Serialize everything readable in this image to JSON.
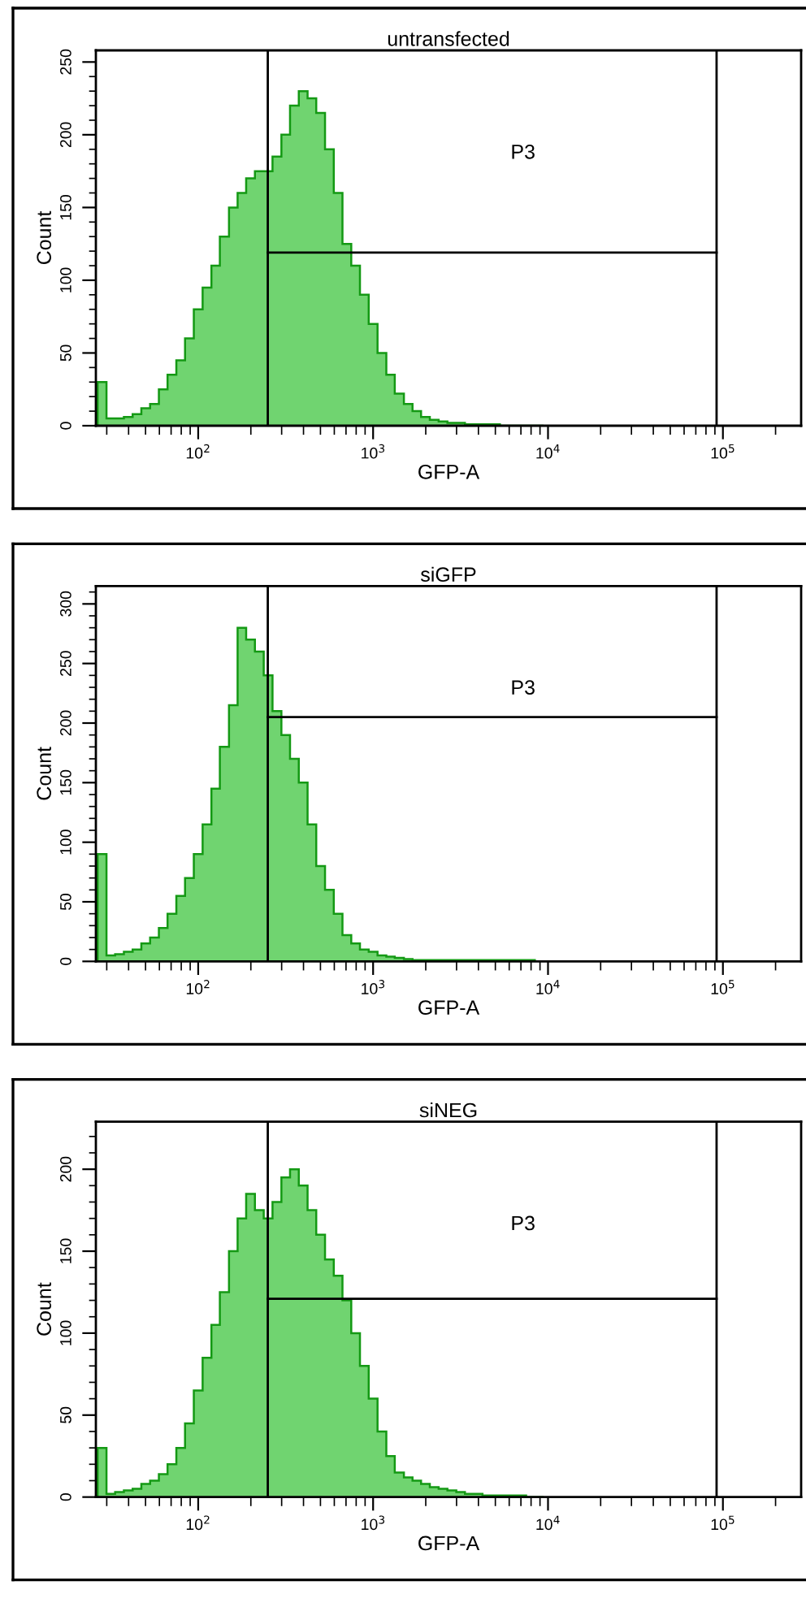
{
  "chart_data": [
    {
      "type": "histogram",
      "title": "untransfected",
      "xlabel": "GFP-A",
      "ylabel": "Count",
      "log": "x",
      "grid": false,
      "color": "#70d470",
      "bins": [
        26.6,
        29.9,
        33.5,
        37.6,
        42.2,
        47.3,
        53.1,
        59.6,
        66.8,
        75.0,
        84.1,
        94.4,
        106,
        119,
        133,
        150,
        168,
        188,
        211,
        237,
        266,
        299,
        335,
        376,
        422,
        473,
        531,
        596,
        668,
        750,
        841,
        944,
        1060,
        1190,
        1330,
        1500,
        1680,
        1880,
        2110,
        2370,
        2660,
        2990,
        3350,
        3760,
        4220,
        4730,
        5310,
        5960,
        6680,
        7500,
        8410,
        9440
      ],
      "values": [
        30,
        5,
        5,
        6,
        8,
        12,
        15,
        25,
        35,
        45,
        60,
        80,
        95,
        110,
        130,
        150,
        160,
        170,
        175,
        175,
        185,
        200,
        220,
        230,
        225,
        215,
        190,
        160,
        125,
        110,
        90,
        70,
        50,
        35,
        22,
        15,
        10,
        6,
        4,
        3,
        2,
        2,
        1,
        1,
        1,
        1,
        0,
        0,
        0,
        0,
        0
      ],
      "ref_lines": [
        {
          "axis": "x",
          "value": 250,
          "color": "#000000"
        },
        {
          "axis": "x",
          "value": 92000,
          "color": "#000000"
        },
        {
          "axis": "y",
          "value": 119,
          "label": "P3",
          "color": "#000000"
        }
      ],
      "xlim": [
        26,
        280000
      ],
      "ylim": [
        0,
        258
      ],
      "xticks": [
        {
          "value": 100,
          "label": "10$^{2}$"
        },
        {
          "value": 1000,
          "label": "10$^{3}$"
        },
        {
          "value": 10000,
          "label": "10$^{4}$"
        },
        {
          "value": 100000,
          "label": "10$^{5}$"
        }
      ],
      "yticks": [
        0,
        50,
        100,
        150,
        200,
        250
      ]
    },
    {
      "type": "histogram",
      "title": "siGFP",
      "xlabel": "GFP-A",
      "ylabel": "Count",
      "log": "x",
      "grid": false,
      "color": "#70d470",
      "bins": [
        26.6,
        29.9,
        33.5,
        37.6,
        42.2,
        47.3,
        53.1,
        59.6,
        66.8,
        75.0,
        84.1,
        94.4,
        106,
        119,
        133,
        150,
        168,
        188,
        211,
        237,
        266,
        299,
        335,
        376,
        422,
        473,
        531,
        596,
        668,
        750,
        841,
        944,
        1060,
        1190,
        1330,
        1500,
        1680,
        1880,
        2110,
        2370,
        2660,
        2990,
        3350,
        3760,
        4220,
        4730,
        5310,
        5960,
        6680,
        7500,
        8410,
        9440
      ],
      "values": [
        90,
        5,
        6,
        8,
        10,
        15,
        20,
        28,
        40,
        55,
        70,
        90,
        115,
        145,
        180,
        215,
        280,
        270,
        260,
        240,
        210,
        190,
        170,
        150,
        115,
        80,
        60,
        40,
        22,
        15,
        10,
        8,
        5,
        4,
        3,
        2,
        1,
        1,
        1,
        1,
        1,
        1,
        1,
        1,
        1,
        1,
        1,
        1,
        1,
        1,
        0
      ],
      "ref_lines": [
        {
          "axis": "x",
          "value": 250,
          "color": "#000000"
        },
        {
          "axis": "x",
          "value": 92000,
          "color": "#000000"
        },
        {
          "axis": "y",
          "value": 205,
          "label": "P3",
          "color": "#000000"
        }
      ],
      "xlim": [
        26,
        280000
      ],
      "ylim": [
        0,
        315
      ],
      "xticks": [
        {
          "value": 100,
          "label": "10$^{2}$"
        },
        {
          "value": 1000,
          "label": "10$^{3}$"
        },
        {
          "value": 10000,
          "label": "10$^{4}$"
        },
        {
          "value": 100000,
          "label": "10$^{5}$"
        }
      ],
      "yticks": [
        0,
        50,
        100,
        150,
        200,
        250,
        300
      ]
    },
    {
      "type": "histogram",
      "title": "siNEG",
      "xlabel": "GFP-A",
      "ylabel": "Count",
      "log": "x",
      "grid": false,
      "color": "#70d470",
      "bins": [
        26.6,
        29.9,
        33.5,
        37.6,
        42.2,
        47.3,
        53.1,
        59.6,
        66.8,
        75.0,
        84.1,
        94.4,
        106,
        119,
        133,
        150,
        168,
        188,
        211,
        237,
        266,
        299,
        335,
        376,
        422,
        473,
        531,
        596,
        668,
        750,
        841,
        944,
        1060,
        1190,
        1330,
        1500,
        1680,
        1880,
        2110,
        2370,
        2660,
        2990,
        3350,
        3760,
        4220,
        4730,
        5310,
        5960,
        6680,
        7500,
        8410,
        9440
      ],
      "values": [
        30,
        2,
        3,
        4,
        5,
        8,
        10,
        14,
        20,
        30,
        45,
        65,
        85,
        105,
        125,
        150,
        170,
        185,
        175,
        170,
        180,
        195,
        200,
        190,
        175,
        160,
        145,
        135,
        120,
        100,
        80,
        60,
        40,
        25,
        15,
        12,
        10,
        8,
        6,
        5,
        4,
        3,
        2,
        2,
        1,
        1,
        1,
        1,
        1,
        0,
        0
      ],
      "ref_lines": [
        {
          "axis": "x",
          "value": 250,
          "color": "#000000"
        },
        {
          "axis": "x",
          "value": 92000,
          "color": "#000000"
        },
        {
          "axis": "y",
          "value": 121,
          "label": "P3",
          "color": "#000000"
        }
      ],
      "xlim": [
        26,
        280000
      ],
      "ylim": [
        0,
        229
      ],
      "xticks": [
        {
          "value": 100,
          "label": "10$^{2}$"
        },
        {
          "value": 1000,
          "label": "10$^{3}$"
        },
        {
          "value": 10000,
          "label": "10$^{4}$"
        },
        {
          "value": 100000,
          "label": "10$^{5}$"
        }
      ],
      "yticks": [
        0,
        50,
        100,
        150,
        200
      ]
    }
  ]
}
